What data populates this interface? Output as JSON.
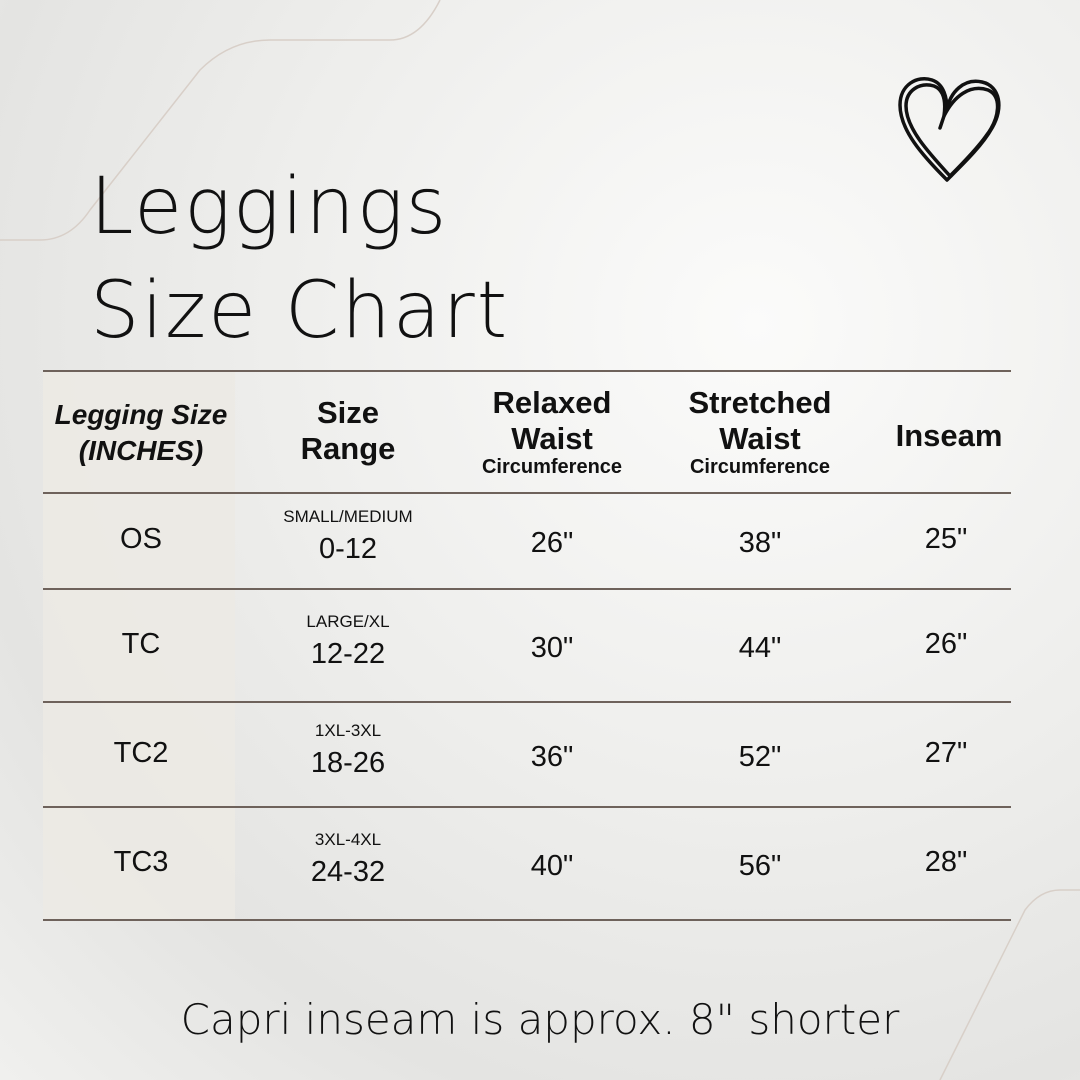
{
  "title": {
    "line1": "Leggings",
    "line2": "Size Chart"
  },
  "headers": {
    "size": {
      "line1": "Legging Size",
      "line2": "(INCHES)"
    },
    "range": {
      "line1": "Size",
      "line2": "Range"
    },
    "relaxed": {
      "line1": "Relaxed",
      "line2": "Waist",
      "sub": "Circumference"
    },
    "stretched": {
      "line1": "Stretched",
      "line2": "Waist",
      "sub": "Circumference"
    },
    "inseam": "Inseam"
  },
  "rows": [
    {
      "size": "OS",
      "label": "SMALL/MEDIUM",
      "range": "0-12",
      "relaxed": "26\"",
      "stretched": "38\"",
      "inseam": "25\""
    },
    {
      "size": "TC",
      "label": "LARGE/XL",
      "range": "12-22",
      "relaxed": "30\"",
      "stretched": "44\"",
      "inseam": "26\""
    },
    {
      "size": "TC2",
      "label": "1XL-3XL",
      "range": "18-26",
      "relaxed": "36\"",
      "stretched": "52\"",
      "inseam": "27\""
    },
    {
      "size": "TC3",
      "label": "3XL-4XL",
      "range": "24-32",
      "relaxed": "40\"",
      "stretched": "56\"",
      "inseam": "28\""
    }
  ],
  "footer": "Capri inseam is approx. 8\" shorter",
  "icons": {
    "heart": "heart-icon"
  }
}
